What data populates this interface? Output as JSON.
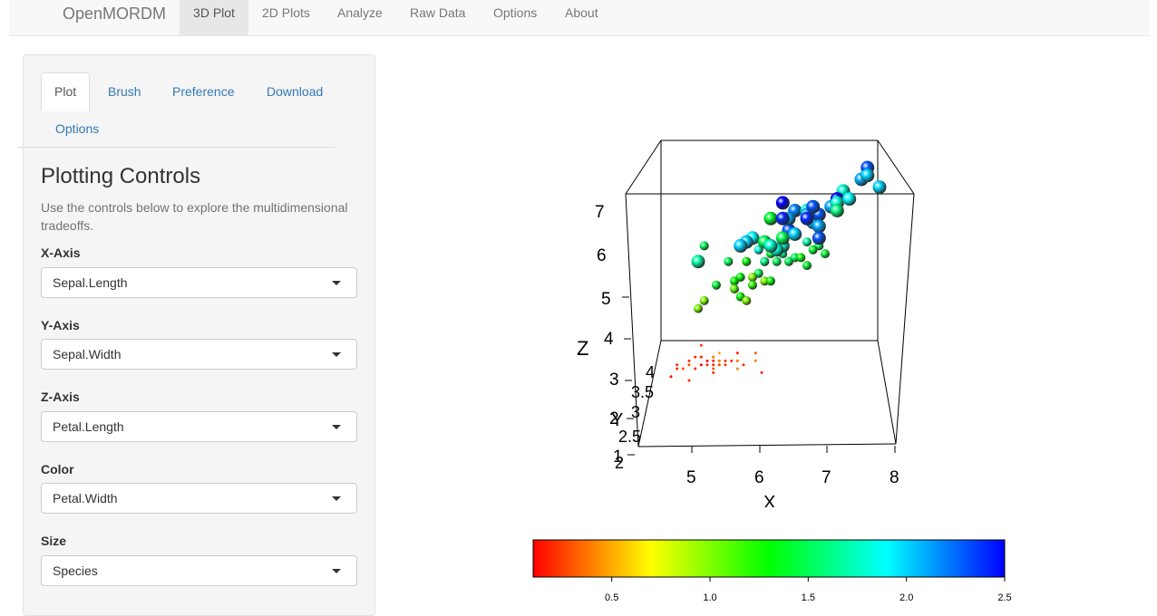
{
  "navbar": {
    "brand": "OpenMORDM",
    "items": [
      {
        "label": "3D Plot",
        "active": true
      },
      {
        "label": "2D Plots",
        "active": false
      },
      {
        "label": "Analyze",
        "active": false
      },
      {
        "label": "Raw Data",
        "active": false
      },
      {
        "label": "Options",
        "active": false
      },
      {
        "label": "About",
        "active": false
      }
    ]
  },
  "sidebar": {
    "tabs": [
      {
        "label": "Plot",
        "active": true
      },
      {
        "label": "Brush",
        "active": false
      },
      {
        "label": "Preference",
        "active": false
      },
      {
        "label": "Download",
        "active": false
      },
      {
        "label": "Options",
        "active": false
      }
    ],
    "title": "Plotting Controls",
    "help": "Use the controls below to explore the multidimensional tradeoffs.",
    "controls": [
      {
        "label": "X-Axis",
        "value": "Sepal.Length"
      },
      {
        "label": "Y-Axis",
        "value": "Sepal.Width"
      },
      {
        "label": "Z-Axis",
        "value": "Petal.Length"
      },
      {
        "label": "Color",
        "value": "Petal.Width"
      },
      {
        "label": "Size",
        "value": "Species"
      }
    ]
  },
  "chart_data": {
    "type": "scatter",
    "title": "",
    "xlabel": "X",
    "ylabel": "Y",
    "zlabel": "Z",
    "x_ticks": [
      "5",
      "6",
      "7",
      "8"
    ],
    "y_ticks": [
      "2",
      "2.5",
      "3",
      "3.5",
      "4"
    ],
    "z_ticks": [
      "1",
      "2",
      "3",
      "4",
      "5",
      "6",
      "7"
    ],
    "x_range": [
      4.3,
      7.9
    ],
    "z_range": [
      1,
      6.9
    ],
    "color_by": "Petal.Width",
    "size_by": "Species",
    "colorbar": {
      "ticks": [
        "0.5",
        "1.0",
        "1.5",
        "2.0",
        "2.5"
      ],
      "range": [
        0.1,
        2.5
      ],
      "colors": [
        "#ff0000",
        "#ffff00",
        "#00ff00",
        "#00ffff",
        "#0000ff"
      ]
    },
    "points": [
      {
        "x": 5.1,
        "z": 1.4,
        "c": 0.2,
        "s": 1
      },
      {
        "x": 4.9,
        "z": 1.4,
        "c": 0.2,
        "s": 1
      },
      {
        "x": 4.7,
        "z": 1.3,
        "c": 0.2,
        "s": 1
      },
      {
        "x": 4.6,
        "z": 1.5,
        "c": 0.2,
        "s": 1
      },
      {
        "x": 5.0,
        "z": 1.4,
        "c": 0.2,
        "s": 1
      },
      {
        "x": 5.4,
        "z": 1.7,
        "c": 0.4,
        "s": 1
      },
      {
        "x": 4.6,
        "z": 1.4,
        "c": 0.3,
        "s": 1
      },
      {
        "x": 5.0,
        "z": 1.5,
        "c": 0.2,
        "s": 1
      },
      {
        "x": 4.4,
        "z": 1.4,
        "c": 0.2,
        "s": 1
      },
      {
        "x": 4.9,
        "z": 1.5,
        "c": 0.1,
        "s": 1
      },
      {
        "x": 5.4,
        "z": 1.5,
        "c": 0.2,
        "s": 1
      },
      {
        "x": 4.8,
        "z": 1.6,
        "c": 0.2,
        "s": 1
      },
      {
        "x": 4.8,
        "z": 1.4,
        "c": 0.1,
        "s": 1
      },
      {
        "x": 4.3,
        "z": 1.1,
        "c": 0.1,
        "s": 1
      },
      {
        "x": 5.8,
        "z": 1.2,
        "c": 0.2,
        "s": 1
      },
      {
        "x": 5.7,
        "z": 1.5,
        "c": 0.4,
        "s": 1
      },
      {
        "x": 5.4,
        "z": 1.3,
        "c": 0.4,
        "s": 1
      },
      {
        "x": 5.1,
        "z": 1.4,
        "c": 0.3,
        "s": 1
      },
      {
        "x": 5.7,
        "z": 1.7,
        "c": 0.3,
        "s": 1
      },
      {
        "x": 5.1,
        "z": 1.5,
        "c": 0.3,
        "s": 1
      },
      {
        "x": 5.4,
        "z": 1.7,
        "c": 0.2,
        "s": 1
      },
      {
        "x": 5.1,
        "z": 1.5,
        "c": 0.4,
        "s": 1
      },
      {
        "x": 4.6,
        "z": 1.0,
        "c": 0.2,
        "s": 1
      },
      {
        "x": 5.1,
        "z": 1.7,
        "c": 0.5,
        "s": 1
      },
      {
        "x": 4.8,
        "z": 1.9,
        "c": 0.2,
        "s": 1
      },
      {
        "x": 5.0,
        "z": 1.6,
        "c": 0.2,
        "s": 1
      },
      {
        "x": 5.0,
        "z": 1.6,
        "c": 0.4,
        "s": 1
      },
      {
        "x": 5.2,
        "z": 1.5,
        "c": 0.2,
        "s": 1
      },
      {
        "x": 5.2,
        "z": 1.4,
        "c": 0.2,
        "s": 1
      },
      {
        "x": 4.7,
        "z": 1.6,
        "c": 0.2,
        "s": 1
      },
      {
        "x": 4.8,
        "z": 1.6,
        "c": 0.2,
        "s": 1
      },
      {
        "x": 5.4,
        "z": 1.5,
        "c": 0.4,
        "s": 1
      },
      {
        "x": 5.5,
        "z": 1.4,
        "c": 0.2,
        "s": 1
      },
      {
        "x": 5.0,
        "z": 1.2,
        "c": 0.2,
        "s": 1
      },
      {
        "x": 4.4,
        "z": 1.3,
        "c": 0.2,
        "s": 1
      },
      {
        "x": 5.0,
        "z": 1.3,
        "c": 0.3,
        "s": 1
      },
      {
        "x": 4.5,
        "z": 1.3,
        "c": 0.3,
        "s": 1
      },
      {
        "x": 5.3,
        "z": 1.5,
        "c": 0.2,
        "s": 1
      },
      {
        "x": 7.0,
        "z": 4.7,
        "c": 1.4,
        "s": 2
      },
      {
        "x": 6.4,
        "z": 4.5,
        "c": 1.5,
        "s": 2
      },
      {
        "x": 6.9,
        "z": 4.9,
        "c": 1.5,
        "s": 2
      },
      {
        "x": 5.5,
        "z": 4.0,
        "c": 1.3,
        "s": 2
      },
      {
        "x": 6.5,
        "z": 4.6,
        "c": 1.5,
        "s": 2
      },
      {
        "x": 5.7,
        "z": 4.5,
        "c": 1.3,
        "s": 2
      },
      {
        "x": 6.3,
        "z": 4.7,
        "c": 1.6,
        "s": 2
      },
      {
        "x": 4.9,
        "z": 3.3,
        "c": 1.0,
        "s": 2
      },
      {
        "x": 6.6,
        "z": 4.6,
        "c": 1.3,
        "s": 2
      },
      {
        "x": 5.2,
        "z": 3.9,
        "c": 1.4,
        "s": 2
      },
      {
        "x": 5.0,
        "z": 3.5,
        "c": 1.0,
        "s": 2
      },
      {
        "x": 5.9,
        "z": 4.2,
        "c": 1.5,
        "s": 2
      },
      {
        "x": 6.0,
        "z": 4.0,
        "c": 1.0,
        "s": 2
      },
      {
        "x": 6.1,
        "z": 4.7,
        "c": 1.4,
        "s": 2
      },
      {
        "x": 5.6,
        "z": 3.6,
        "c": 1.3,
        "s": 2
      },
      {
        "x": 6.7,
        "z": 4.4,
        "c": 1.4,
        "s": 2
      },
      {
        "x": 5.8,
        "z": 4.1,
        "c": 1.0,
        "s": 2
      },
      {
        "x": 6.2,
        "z": 4.5,
        "c": 1.5,
        "s": 2
      },
      {
        "x": 5.9,
        "z": 4.8,
        "c": 1.8,
        "s": 2
      },
      {
        "x": 6.1,
        "z": 4.0,
        "c": 1.3,
        "s": 2
      },
      {
        "x": 6.8,
        "z": 4.8,
        "c": 1.4,
        "s": 2
      },
      {
        "x": 6.7,
        "z": 5.0,
        "c": 1.7,
        "s": 2
      },
      {
        "x": 6.0,
        "z": 4.5,
        "c": 1.5,
        "s": 2
      },
      {
        "x": 5.7,
        "z": 3.5,
        "c": 1.0,
        "s": 2
      },
      {
        "x": 5.5,
        "z": 3.8,
        "c": 1.1,
        "s": 2
      },
      {
        "x": 5.8,
        "z": 3.9,
        "c": 1.2,
        "s": 2
      },
      {
        "x": 5.4,
        "z": 4.5,
        "c": 1.5,
        "s": 2
      },
      {
        "x": 6.0,
        "z": 4.5,
        "c": 1.6,
        "s": 2
      },
      {
        "x": 5.0,
        "z": 4.9,
        "c": 1.5,
        "s": 2
      },
      {
        "x": 5.6,
        "z": 4.1,
        "c": 1.3,
        "s": 2
      },
      {
        "x": 6.3,
        "z": 6.0,
        "c": 2.5,
        "s": 3
      },
      {
        "x": 5.8,
        "z": 5.1,
        "c": 1.9,
        "s": 3
      },
      {
        "x": 7.1,
        "z": 5.9,
        "c": 2.1,
        "s": 3
      },
      {
        "x": 6.5,
        "z": 5.8,
        "c": 2.2,
        "s": 3
      },
      {
        "x": 7.6,
        "z": 6.6,
        "c": 2.1,
        "s": 3
      },
      {
        "x": 4.9,
        "z": 4.5,
        "c": 1.7,
        "s": 3
      },
      {
        "x": 7.3,
        "z": 6.3,
        "c": 1.8,
        "s": 3
      },
      {
        "x": 6.7,
        "z": 5.8,
        "c": 1.8,
        "s": 3
      },
      {
        "x": 7.2,
        "z": 6.1,
        "c": 2.5,
        "s": 3
      },
      {
        "x": 6.4,
        "z": 5.3,
        "c": 1.9,
        "s": 3
      },
      {
        "x": 6.8,
        "z": 5.5,
        "c": 2.1,
        "s": 3
      },
      {
        "x": 5.7,
        "z": 5.0,
        "c": 2.0,
        "s": 3
      },
      {
        "x": 6.4,
        "z": 5.3,
        "c": 2.3,
        "s": 3
      },
      {
        "x": 7.7,
        "z": 6.7,
        "c": 2.2,
        "s": 3
      },
      {
        "x": 7.7,
        "z": 6.9,
        "c": 2.3,
        "s": 3
      },
      {
        "x": 6.0,
        "z": 5.0,
        "c": 1.5,
        "s": 3
      },
      {
        "x": 6.9,
        "z": 5.7,
        "c": 2.3,
        "s": 3
      },
      {
        "x": 5.6,
        "z": 4.9,
        "c": 2.0,
        "s": 3
      },
      {
        "x": 7.7,
        "z": 6.7,
        "c": 2.0,
        "s": 3
      },
      {
        "x": 6.3,
        "z": 4.9,
        "c": 1.8,
        "s": 3
      },
      {
        "x": 6.7,
        "z": 5.7,
        "c": 2.1,
        "s": 3
      },
      {
        "x": 7.2,
        "z": 6.0,
        "c": 1.8,
        "s": 3
      },
      {
        "x": 6.2,
        "z": 4.8,
        "c": 1.8,
        "s": 3
      },
      {
        "x": 6.1,
        "z": 4.9,
        "c": 1.8,
        "s": 3
      },
      {
        "x": 6.4,
        "z": 5.6,
        "c": 2.1,
        "s": 3
      },
      {
        "x": 7.2,
        "z": 5.8,
        "c": 1.6,
        "s": 3
      },
      {
        "x": 7.4,
        "z": 6.1,
        "c": 1.9,
        "s": 3
      },
      {
        "x": 7.9,
        "z": 6.4,
        "c": 2.0,
        "s": 3
      },
      {
        "x": 6.3,
        "z": 5.1,
        "c": 1.5,
        "s": 3
      },
      {
        "x": 6.1,
        "z": 5.6,
        "c": 1.4,
        "s": 3
      },
      {
        "x": 6.3,
        "z": 5.6,
        "c": 2.4,
        "s": 3
      },
      {
        "x": 6.9,
        "z": 5.4,
        "c": 2.1,
        "s": 3
      },
      {
        "x": 6.7,
        "z": 5.6,
        "c": 2.4,
        "s": 3
      },
      {
        "x": 6.9,
        "z": 5.1,
        "c": 2.3,
        "s": 3
      },
      {
        "x": 6.8,
        "z": 5.9,
        "c": 2.3,
        "s": 3
      },
      {
        "x": 6.5,
        "z": 5.2,
        "c": 2.0,
        "s": 3
      }
    ]
  }
}
